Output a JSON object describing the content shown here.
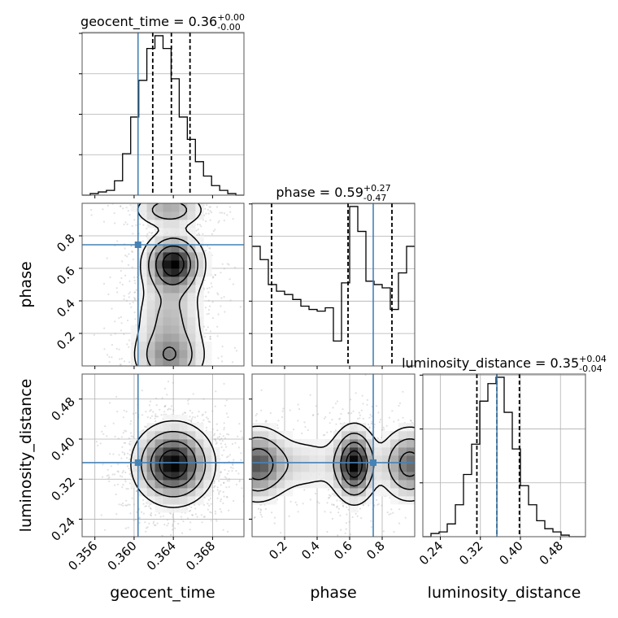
{
  "chart_data": [
    {
      "type": "histogram",
      "panel": "geocent_time-marginal",
      "title_name": "geocent_time",
      "title_value": "0.36",
      "title_err_up": "+0.00",
      "title_err_down": "-0.00",
      "x_range": [
        0.3547,
        0.3712
      ],
      "bin_edges_start": 0.3547,
      "bin_width": 0.000825,
      "counts": [
        0,
        1,
        2,
        3,
        9,
        26,
        49,
        72,
        92,
        100,
        92,
        73,
        49,
        35,
        21,
        12,
        6,
        3,
        1,
        0
      ],
      "truth": 0.3604,
      "quantiles": [
        0.3619,
        0.3638,
        0.3657
      ],
      "grid": true
    },
    {
      "type": "histogram",
      "panel": "phase-marginal",
      "title_name": "phase",
      "title_value": "0.59",
      "title_err_up": "+0.27",
      "title_err_down": "-0.47",
      "x_range": [
        0.0,
        1.0
      ],
      "bin_edges_start": 0.0,
      "bin_width": 0.05,
      "counts": [
        72,
        64,
        49,
        45,
        43,
        40,
        36,
        34,
        33,
        35,
        15,
        50,
        96,
        81,
        51,
        49,
        47,
        34,
        56,
        72
      ],
      "truth": 0.745,
      "quantiles": [
        0.12,
        0.59,
        0.86
      ],
      "grid": true
    },
    {
      "type": "histogram",
      "panel": "luminosity_distance-marginal",
      "title_name": "luminosity_distance",
      "title_value": "0.35",
      "title_err_up": "+0.04",
      "title_err_down": "-0.04",
      "x_range": [
        0.205,
        0.53
      ],
      "bin_edges_start": 0.205,
      "bin_width": 0.01625,
      "counts": [
        0,
        2,
        3,
        8,
        20,
        39,
        58,
        85,
        96,
        100,
        78,
        55,
        32,
        20,
        10,
        5,
        3,
        1,
        0,
        0
      ],
      "truth": 0.353,
      "quantiles": [
        0.313,
        0.353,
        0.398
      ],
      "xticks": [
        0.24,
        0.32,
        0.4,
        0.48
      ],
      "xtick_labels": [
        "0.24",
        "0.32",
        "0.40",
        "0.48"
      ],
      "xlabel": "luminosity_distance",
      "grid": true
    },
    {
      "type": "contour-scatter",
      "panel": "geocent_time-vs-phase",
      "x_range": [
        0.3547,
        0.3712
      ],
      "y_range": [
        0.0,
        1.0
      ],
      "yticks": [
        0.2,
        0.4,
        0.6,
        0.8
      ],
      "ytick_labels": [
        "0.2",
        "0.4",
        "0.6",
        "0.8"
      ],
      "ylabel": "phase",
      "truth": [
        0.3604,
        0.745
      ],
      "density_peaks": [
        {
          "x": 0.364,
          "y": 0.63,
          "sx": 0.0016,
          "sy": 0.1,
          "w": 1.0
        },
        {
          "x": 0.3636,
          "y": 0.96,
          "sx": 0.002,
          "sy": 0.06,
          "w": 0.45
        },
        {
          "x": 0.3636,
          "y": 0.05,
          "sx": 0.002,
          "sy": 0.1,
          "w": 0.5
        },
        {
          "x": 0.3636,
          "y": 0.3,
          "sx": 0.002,
          "sy": 0.15,
          "w": 0.35
        }
      ],
      "grid": true
    },
    {
      "type": "contour-scatter",
      "panel": "geocent_time-vs-luminosity_distance",
      "x_range": [
        0.3547,
        0.3712
      ],
      "y_range": [
        0.205,
        0.53
      ],
      "xticks": [
        0.356,
        0.36,
        0.364,
        0.368
      ],
      "xtick_labels": [
        "0.356",
        "0.360",
        "0.364",
        "0.368"
      ],
      "xlabel": "geocent_time",
      "yticks": [
        0.24,
        0.32,
        0.4,
        0.48
      ],
      "ytick_labels": [
        "0.24",
        "0.32",
        "0.40",
        "0.48"
      ],
      "ylabel": "luminosity_distance",
      "truth": [
        0.3604,
        0.353
      ],
      "density_peaks": [
        {
          "x": 0.364,
          "y": 0.35,
          "sx": 0.0021,
          "sy": 0.042,
          "w": 1.0
        }
      ],
      "grid": true
    },
    {
      "type": "contour-scatter",
      "panel": "phase-vs-luminosity_distance",
      "x_range": [
        0.0,
        1.0
      ],
      "y_range": [
        0.205,
        0.53
      ],
      "xticks": [
        0.2,
        0.4,
        0.6,
        0.8
      ],
      "xtick_labels": [
        "0.2",
        "0.4",
        "0.6",
        "0.8"
      ],
      "xlabel": "phase",
      "truth": [
        0.745,
        0.353
      ],
      "density_peaks": [
        {
          "x": 0.63,
          "y": 0.35,
          "sx": 0.07,
          "sy": 0.04,
          "w": 1.0
        },
        {
          "x": 0.03,
          "y": 0.35,
          "sx": 0.1,
          "sy": 0.04,
          "w": 0.7
        },
        {
          "x": 0.97,
          "y": 0.35,
          "sx": 0.1,
          "sy": 0.04,
          "w": 0.7
        },
        {
          "x": 0.3,
          "y": 0.35,
          "sx": 0.2,
          "sy": 0.036,
          "w": 0.22
        }
      ],
      "grid": true
    }
  ],
  "colors": {
    "truth": "#4682b4",
    "histogram": "#000000",
    "quantile": "#000000",
    "grid": "#b0b0b0",
    "scatter": "#aaaaaa"
  }
}
